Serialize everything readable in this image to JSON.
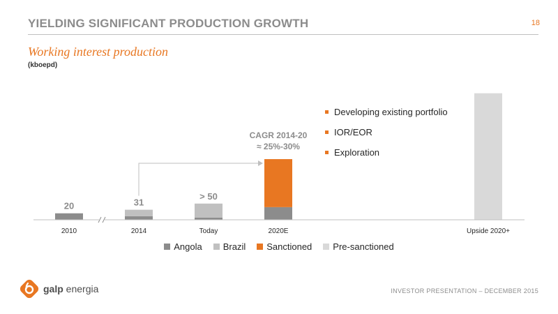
{
  "header": {
    "title": "YIELDING SIGNIFICANT PRODUCTION GROWTH",
    "page_number": "18"
  },
  "subtitle": "Working interest production",
  "unit": "(kboepd)",
  "colors": {
    "accent": "#e87722",
    "angola": "#8c8c8c",
    "brazil": "#c0c0c0",
    "sanctioned": "#e87722",
    "pre_sanctioned": "#d9d9d9"
  },
  "chart_data": {
    "type": "bar",
    "stacked": true,
    "categories": [
      "2010",
      "2014",
      "Today",
      "2020E",
      "Upside 2020+"
    ],
    "series": [
      {
        "name": "Angola",
        "color": "#8c8c8c",
        "values": [
          20,
          11,
          7,
          39,
          0
        ]
      },
      {
        "name": "Brazil",
        "color": "#c0c0c0",
        "values": [
          0,
          20,
          43,
          0,
          0
        ]
      },
      {
        "name": "Sanctioned",
        "color": "#e87722",
        "values": [
          0,
          0,
          0,
          148,
          0
        ]
      },
      {
        "name": "Pre-sanctioned",
        "color": "#d9d9d9",
        "values": [
          0,
          0,
          0,
          0,
          390
        ]
      }
    ],
    "data_labels": [
      "20",
      "31",
      "> 50",
      "",
      ""
    ],
    "annotation": {
      "line1": "CAGR 2014-20",
      "line2": "≈ 25%-30%"
    },
    "ylim": [
      0,
      400
    ],
    "axis_break_after": "2010",
    "legend_position": "bottom",
    "grid": false
  },
  "bullets": [
    "Developing existing portfolio",
    "IOR/EOR",
    "Exploration"
  ],
  "footer": "INVESTOR PRESENTATION – DECEMBER 2015",
  "logo": {
    "brand": "galp",
    "suffix": "energia"
  }
}
